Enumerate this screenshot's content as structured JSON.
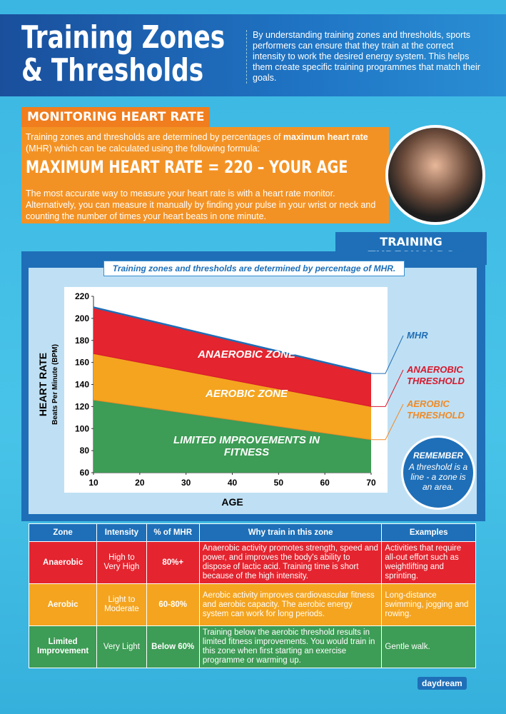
{
  "header": {
    "title_lines": [
      "Training Zones",
      "& Thresholds"
    ],
    "intro": "By understanding training zones and thresholds, sports performers can ensure that they train at the correct intensity to work the desired energy system. This helps them create specific training programmes that match their goals."
  },
  "monitoring": {
    "heading": "MONITORING HEART RATE",
    "p1_before": "Training zones and thresholds are determined by percentages of",
    "p1_bold": "maximum heart rate",
    "p1_after": "(MHR) which can be calculated using the following formula:",
    "formula": "MAXIMUM HEART RATE = 220 – YOUR AGE",
    "p2": "The most accurate way to measure your heart rate is with a heart rate monitor. Alternatively, you can measure it manually by finding your pulse in your wrist or neck and counting the number of times your heart beats in one minute."
  },
  "thresholds_heading": "TRAINING THRESHOLDS",
  "chart_data": {
    "type": "area",
    "subtitle": "Training zones and thresholds are determined by percentage of MHR.",
    "ylabel": "HEART RATE",
    "ylabel_sub": "Beats Per Minute (BPM)",
    "xlabel": "AGE",
    "x": [
      10,
      70
    ],
    "series": [
      {
        "name": "MHR",
        "color": "#1f6db5",
        "values": [
          210,
          150
        ]
      },
      {
        "name": "ANAEROBIC THRESHOLD",
        "color": "#d7192d",
        "values": [
          168,
          120
        ]
      },
      {
        "name": "AEROBIC THRESHOLD",
        "color": "#ef8a26",
        "values": [
          126,
          90
        ]
      }
    ],
    "zones": [
      {
        "label": "ANAEROBIC ZONE",
        "color": "#e4242f"
      },
      {
        "label": "AEROBIC ZONE",
        "color": "#f4a41f"
      },
      {
        "label": "LIMITED IMPROVEMENTS IN FITNESS",
        "color": "#3d9c55"
      }
    ],
    "xlim": [
      10,
      70
    ],
    "xticks": [
      10,
      20,
      30,
      40,
      50,
      60,
      70
    ],
    "ylim": [
      60,
      220
    ],
    "yticks": [
      60,
      80,
      100,
      120,
      140,
      160,
      180,
      200,
      220
    ],
    "grid": false
  },
  "remember": {
    "title": "REMEMBER",
    "text": "A threshold is a line - a zone is an area."
  },
  "table": {
    "headers": [
      "Zone",
      "Intensity",
      "% of MHR",
      "Why train in this zone",
      "Examples"
    ],
    "rows": [
      {
        "color": "#e4242f",
        "cells": [
          "Anaerobic",
          "High to Very High",
          "80%+",
          "Anaerobic activity promotes strength, speed and power, and improves the body's ability to dispose of lactic acid. Training time is short because of the high intensity.",
          "Activities that require all-out effort such as weightlifting and sprinting."
        ]
      },
      {
        "color": "#f4a41f",
        "cells": [
          "Aerobic",
          "Light to Moderate",
          "60-80%",
          "Aerobic activity improves cardiovascular fitness and aerobic capacity. The aerobic energy system can work for long periods.",
          "Long-distance swimming, jogging and rowing."
        ]
      },
      {
        "color": "#3d9c55",
        "cells": [
          "Limited Improvement",
          "Very Light",
          "Below 60%",
          "Training below the aerobic threshold results in limited fitness improvements. You would train in this zone when first starting an exercise programme or warming up.",
          "Gentle walk."
        ]
      }
    ]
  },
  "footer": {
    "brand": "daydream"
  }
}
